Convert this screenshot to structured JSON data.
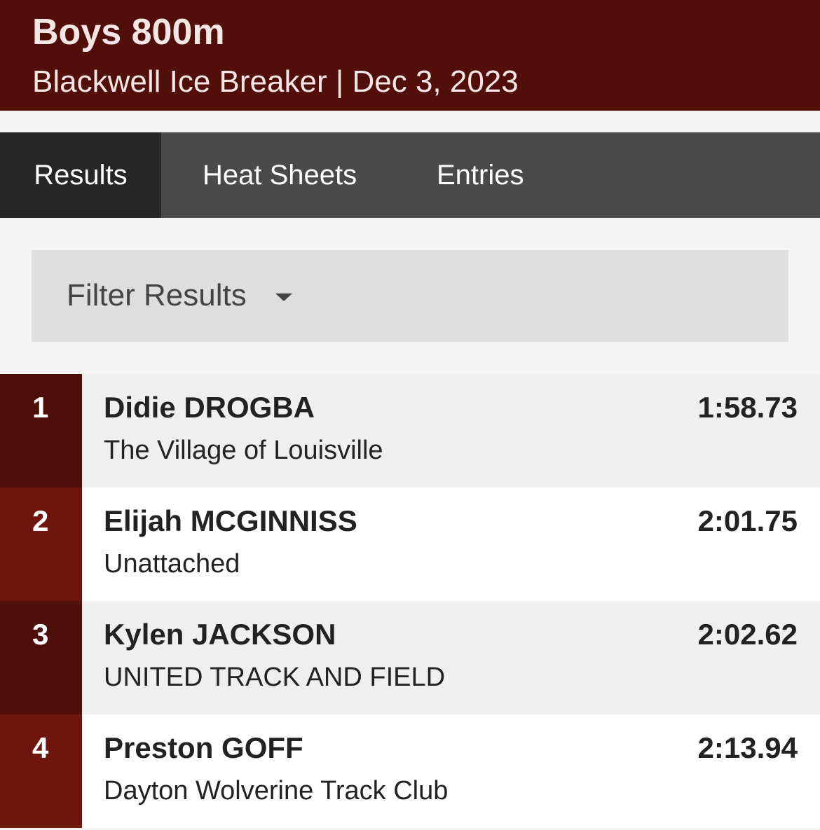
{
  "header": {
    "title": "Boys 800m",
    "subtitle": "Blackwell Ice Breaker | Dec 3, 2023"
  },
  "tabs": [
    "Results",
    "Heat Sheets",
    "Entries"
  ],
  "filter": {
    "label": "Filter Results"
  },
  "results": [
    {
      "place": "1",
      "name": "Didie DROGBA",
      "team": "The Village of Louisville",
      "time": "1:58.73"
    },
    {
      "place": "2",
      "name": "Elijah MCGINNISS",
      "team": "Unattached",
      "time": "2:01.75"
    },
    {
      "place": "3",
      "name": "Kylen JACKSON",
      "team": "UNITED TRACK AND FIELD",
      "time": "2:02.62"
    },
    {
      "place": "4",
      "name": "Preston GOFF",
      "team": "Dayton Wolverine Track Club",
      "time": "2:13.94"
    }
  ]
}
